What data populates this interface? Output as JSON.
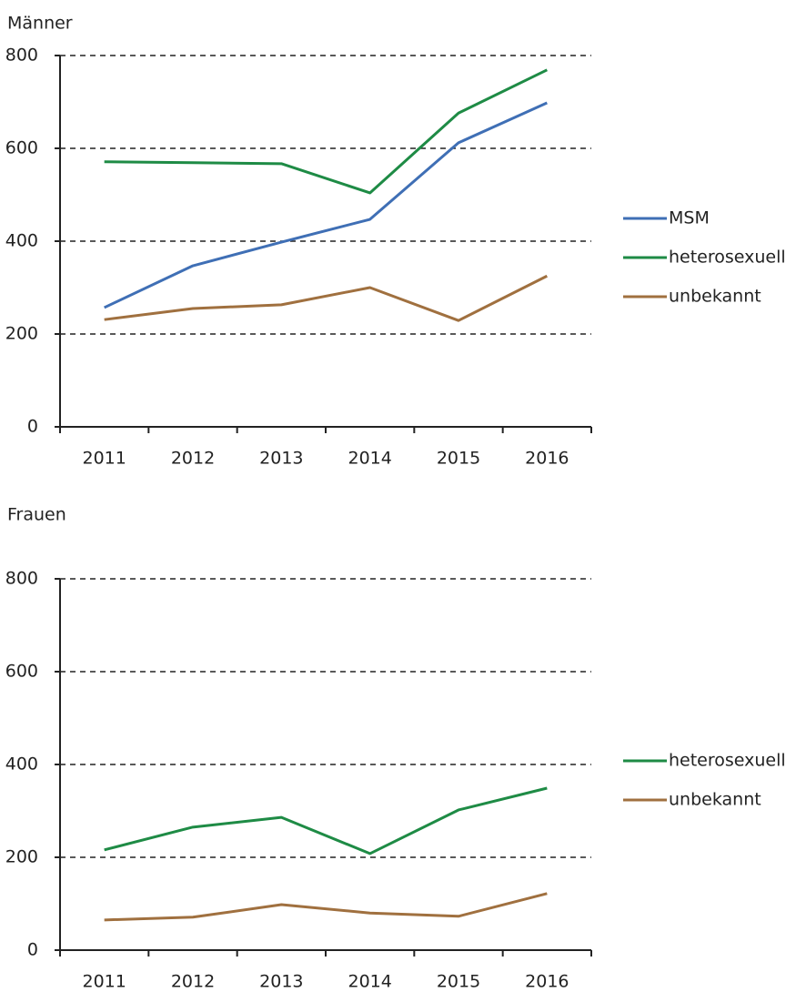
{
  "chart_data": [
    {
      "type": "line",
      "title": "Männer",
      "categories": [
        "2011",
        "2012",
        "2013",
        "2014",
        "2015",
        "2016"
      ],
      "series": [
        {
          "name": "MSM",
          "color": "#3f6fb5",
          "values": [
            257,
            347,
            398,
            447,
            612,
            698
          ]
        },
        {
          "name": "heterosexuell",
          "color": "#1e8b45",
          "values": [
            571,
            569,
            567,
            504,
            676,
            769
          ]
        },
        {
          "name": "unbekannt",
          "color": "#a0703f",
          "values": [
            231,
            255,
            263,
            300,
            229,
            325
          ]
        }
      ],
      "ylim": [
        0,
        800
      ],
      "yticks": [
        0,
        200,
        400,
        600,
        800
      ],
      "grid": true,
      "legend": "right"
    },
    {
      "type": "line",
      "title": "Frauen",
      "categories": [
        "2011",
        "2012",
        "2013",
        "2014",
        "2015",
        "2016"
      ],
      "series": [
        {
          "name": "heterosexuell",
          "color": "#1e8b45",
          "values": [
            216,
            265,
            286,
            208,
            302,
            349
          ]
        },
        {
          "name": "unbekannt",
          "color": "#a0703f",
          "values": [
            65,
            71,
            98,
            80,
            73,
            122
          ]
        }
      ],
      "ylim": [
        0,
        800
      ],
      "yticks": [
        0,
        200,
        400,
        600,
        800
      ],
      "grid": true,
      "legend": "right"
    }
  ]
}
